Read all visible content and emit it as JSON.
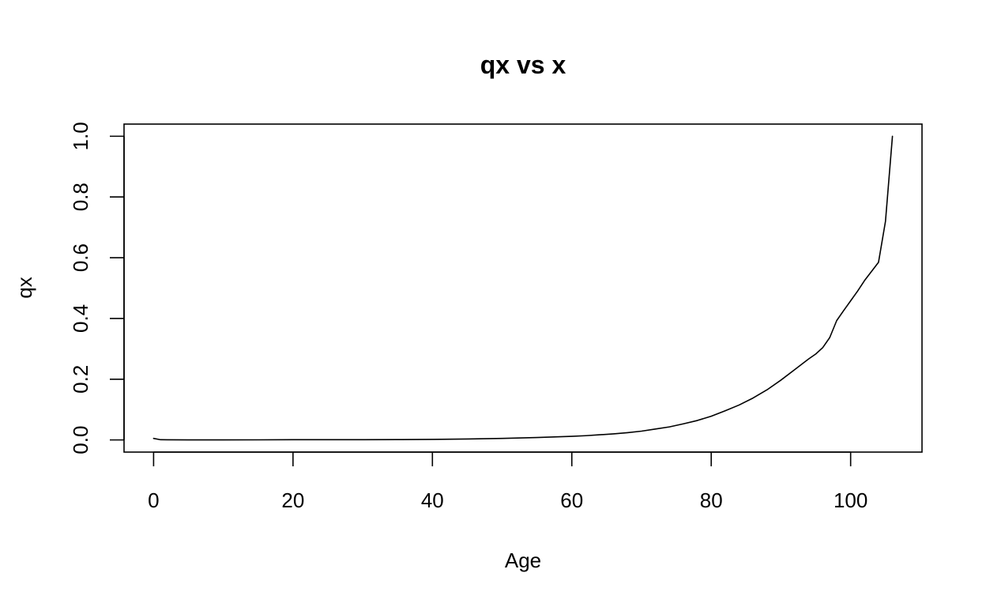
{
  "chart_data": {
    "type": "line",
    "title": "qx vs x",
    "xlabel": "Age",
    "ylabel": "qx",
    "xlim": [
      -4.24,
      110.24
    ],
    "ylim": [
      -0.04,
      1.04
    ],
    "x_ticks": [
      0,
      20,
      40,
      60,
      80,
      100
    ],
    "x_tick_labels": [
      "0",
      "20",
      "40",
      "60",
      "80",
      "100"
    ],
    "y_ticks": [
      0.0,
      0.2,
      0.4,
      0.6,
      0.8,
      1.0
    ],
    "y_tick_labels": [
      "0.0",
      "0.2",
      "0.4",
      "0.6",
      "0.8",
      "1.0"
    ],
    "grid": false,
    "legend": "none",
    "series": [
      {
        "color": "#000000",
        "x": [
          0,
          1,
          2,
          5,
          10,
          15,
          20,
          25,
          30,
          35,
          40,
          45,
          50,
          55,
          60,
          62,
          64,
          66,
          68,
          70,
          72,
          74,
          76,
          78,
          80,
          82,
          84,
          86,
          88,
          90,
          92,
          94,
          95,
          96,
          97,
          98,
          99,
          100,
          101,
          102,
          103,
          104,
          105,
          106
        ],
        "y": [
          0.005,
          0.0007,
          0.0004,
          0.0002,
          0.0001,
          0.0003,
          0.0007,
          0.0008,
          0.0009,
          0.0012,
          0.0018,
          0.003,
          0.005,
          0.008,
          0.012,
          0.014,
          0.017,
          0.02,
          0.024,
          0.029,
          0.036,
          0.043,
          0.053,
          0.064,
          0.078,
          0.096,
          0.115,
          0.138,
          0.165,
          0.197,
          0.232,
          0.267,
          0.283,
          0.304,
          0.337,
          0.393,
          0.426,
          0.458,
          0.49,
          0.525,
          0.555,
          0.585,
          0.72,
          1.0
        ]
      }
    ]
  }
}
